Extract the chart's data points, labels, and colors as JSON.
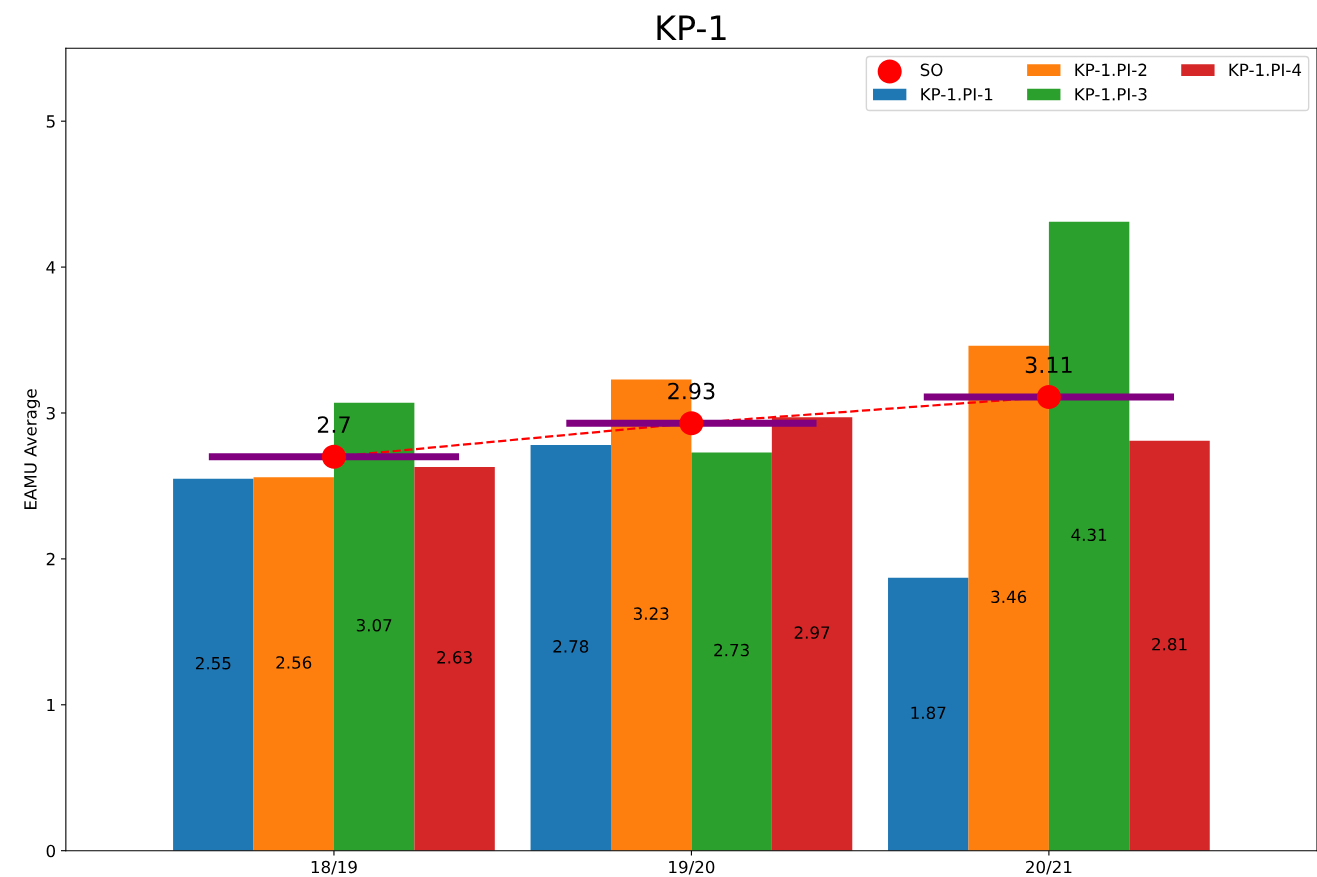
{
  "chart_data": {
    "type": "bar",
    "title": "KP-1",
    "ylabel": "EAMU Average",
    "categories": [
      "18/19",
      "19/20",
      "20/21"
    ],
    "series": [
      {
        "name": "SO",
        "type": "scatter",
        "color": "#ff0000",
        "marker": "circle",
        "x": [
          "18/19",
          "19/20",
          "20/21"
        ],
        "values": [
          2.7,
          2.93,
          3.11
        ],
        "value_labels": [
          "2.7",
          "2.93",
          "3.11"
        ]
      },
      {
        "name": "KP-1.PI-1",
        "color": "#1f77b4",
        "values": [
          2.55,
          2.78,
          1.87
        ],
        "value_labels": [
          "2.55",
          "2.78",
          "1.87"
        ]
      },
      {
        "name": "KP-1.PI-2",
        "color": "#ff7f0e",
        "values": [
          2.56,
          3.23,
          3.46
        ],
        "value_labels": [
          "2.56",
          "3.23",
          "3.46"
        ]
      },
      {
        "name": "KP-1.PI-3",
        "color": "#2ca02c",
        "values": [
          3.07,
          2.73,
          4.31
        ],
        "value_labels": [
          "3.07",
          "2.73",
          "4.31"
        ]
      },
      {
        "name": "KP-1.PI-4",
        "color": "#d62728",
        "values": [
          2.63,
          2.97,
          2.81
        ],
        "value_labels": [
          "2.63",
          "2.97",
          "2.81"
        ]
      },
      {
        "type": "line",
        "color": "#ff0000",
        "line_style": "dashed",
        "marker": "none",
        "x": [
          "18/19",
          "19/20",
          "20/21"
        ],
        "values": [
          2.7,
          2.93,
          3.11
        ]
      }
    ],
    "ylim": [
      0,
      5.5
    ],
    "yticks": [
      0,
      1,
      2,
      3,
      4,
      5
    ],
    "ref_lines": [
      {
        "axis": "y",
        "value": 2.7,
        "color": "#800080",
        "line_style": "solid"
      },
      {
        "axis": "y",
        "value": 2.93,
        "color": "#800080",
        "line_style": "solid"
      },
      {
        "axis": "y",
        "value": 3.11,
        "color": "#800080",
        "line_style": "solid"
      }
    ],
    "grid": false,
    "legend": "top right"
  }
}
